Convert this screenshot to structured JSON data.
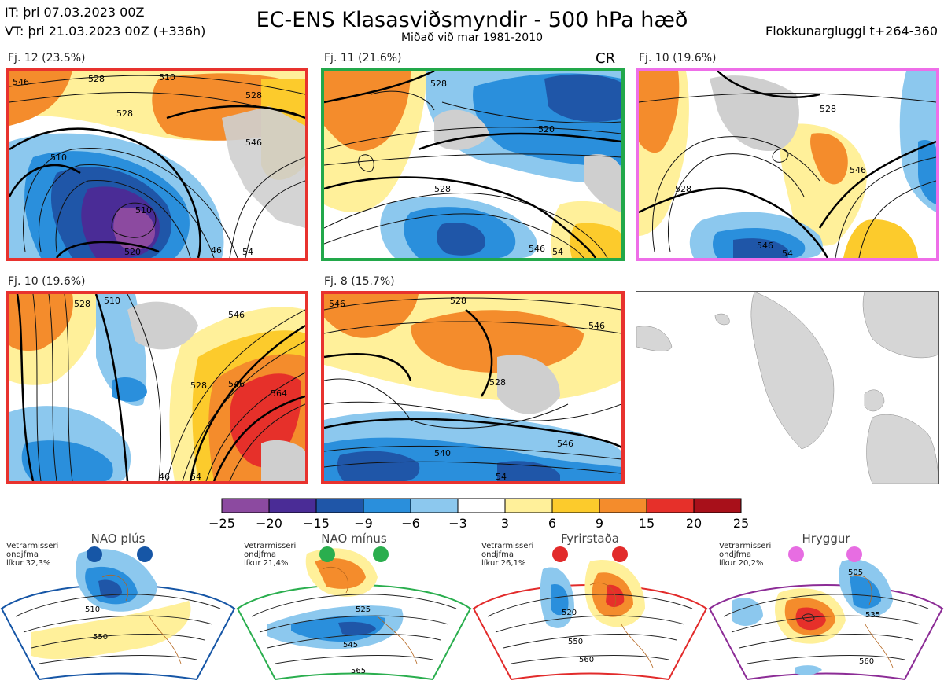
{
  "header": {
    "initial_time": "IT: þri 07.03.2023 00Z",
    "valid_time": "VT: þri 21.03.2023 00Z  (+336h)",
    "title": "EC-ENS Klasasviðsmyndir - 500 hPa hæð",
    "subtitle": "Miðað við mar 1981-2010",
    "window": "Flokkunargluggi t+264-360"
  },
  "panels": [
    {
      "label": "Fj. 12 (23.5%)",
      "frame_color": "#e8322e",
      "tag": ""
    },
    {
      "label": "Fj. 11 (21.6%)",
      "frame_color": "#22a84a",
      "tag": "CR"
    },
    {
      "label": "Fj. 10 (19.6%)",
      "frame_color": "#ee6ee8",
      "tag": ""
    },
    {
      "label": "Fj. 10 (19.6%)",
      "frame_color": "#e8322e",
      "tag": ""
    },
    {
      "label": "Fj. 8 (15.7%)",
      "frame_color": "#e8322e",
      "tag": ""
    }
  ],
  "contour_labels": {
    "p1": [
      "546",
      "528",
      "510",
      "528",
      "546",
      "510",
      "510",
      "528",
      "520",
      "46",
      "54"
    ],
    "p2": [
      "528",
      "520",
      "528",
      "546",
      "54"
    ],
    "p3": [
      "528",
      "528",
      "546",
      "546",
      "54"
    ],
    "p4": [
      "528",
      "510",
      "528",
      "546",
      "564",
      "546",
      "54",
      "46"
    ],
    "p5": [
      "546",
      "528",
      "546",
      "528",
      "546",
      "540",
      "54"
    ]
  },
  "chart_data": {
    "type": "heatmap",
    "title": "EC-ENS Klasasviðsmyndir - 500 hPa hæð",
    "colorbar": {
      "ticks": [
        "−25",
        "−20",
        "−15",
        "−9",
        "−6",
        "−3",
        "3",
        "6",
        "9",
        "15",
        "20",
        "25"
      ],
      "colors": [
        "#8c4aa0",
        "#4a2c96",
        "#1f56a8",
        "#2a8fdc",
        "#8cc8ee",
        "#ffffff",
        "#fff09a",
        "#fccb2c",
        "#f48c2c",
        "#e6302a",
        "#a8101a"
      ]
    }
  },
  "regimes": [
    {
      "name": "NAO plús",
      "color": "#1656a6",
      "info": [
        "Vetrarmisseri",
        "ondjfma",
        "líkur 32,3%"
      ],
      "labels": [
        "510",
        "550"
      ]
    },
    {
      "name": "NAO mínus",
      "color": "#2aae4e",
      "info": [
        "Vetrarmisseri",
        "ondjfma",
        "líkur 21,4%"
      ],
      "labels": [
        "525",
        "545",
        "565"
      ]
    },
    {
      "name": "Fyrirstaða",
      "color": "#e22b2b",
      "info": [
        "Vetrarmisseri",
        "ondjfma",
        "líkur 26,1%"
      ],
      "labels": [
        "520",
        "550",
        "560"
      ]
    },
    {
      "name": "Hryggur",
      "color": "#e76de2",
      "info": [
        "Vetrarmisseri",
        "ondjfma",
        "líkur 20,2%"
      ],
      "labels": [
        "505",
        "535",
        "560"
      ]
    }
  ]
}
